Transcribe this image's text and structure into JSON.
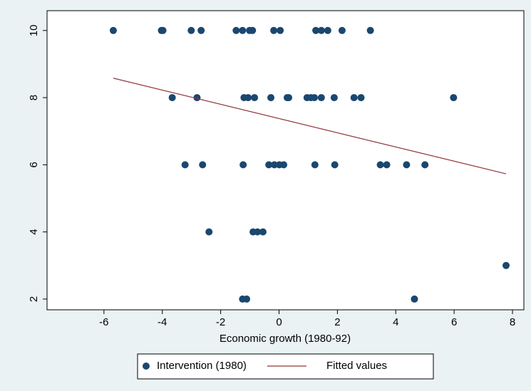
{
  "chart_data": {
    "type": "scatter",
    "xlabel": "Economic growth (1980-92)",
    "xlim": [
      -7.95,
      8.39
    ],
    "ylim": [
      1.68,
      10.59
    ],
    "xticks": [
      -6,
      -4,
      -2,
      0,
      2,
      4,
      6,
      8
    ],
    "yticks": [
      2,
      4,
      6,
      8,
      10
    ],
    "grid": false,
    "legend": "bottom",
    "series": [
      {
        "name": "Intervention (1980)",
        "type": "scatter",
        "color": "#1a476f",
        "x": [
          -5.68,
          -4.03,
          -3.98,
          -3.01,
          -2.67,
          -1.47,
          -1.25,
          -1.01,
          -0.91,
          -0.18,
          0.04,
          1.26,
          1.45,
          1.67,
          2.16,
          3.13,
          -3.66,
          -2.81,
          -1.2,
          -1.06,
          -0.84,
          -0.28,
          0.28,
          0.33,
          0.96,
          1.09,
          1.21,
          1.45,
          1.89,
          2.57,
          2.81,
          5.98,
          -3.22,
          -2.62,
          -1.23,
          -0.35,
          -0.16,
          0.01,
          0.16,
          1.23,
          1.91,
          3.47,
          3.69,
          4.37,
          5.0,
          -2.4,
          -0.89,
          -0.74,
          -0.55,
          7.78,
          -1.25,
          -1.11,
          4.64
        ],
        "values": [
          10,
          10,
          10,
          10,
          10,
          10,
          10,
          10,
          10,
          10,
          10,
          10,
          10,
          10,
          10,
          10,
          8,
          8,
          8,
          8,
          8,
          8,
          8,
          8,
          8,
          8,
          8,
          8,
          8,
          8,
          8,
          8,
          6,
          6,
          6,
          6,
          6,
          6,
          6,
          6,
          6,
          6,
          6,
          6,
          6,
          4,
          4,
          4,
          4,
          3,
          2,
          2,
          2
        ]
      },
      {
        "name": "Fitted values",
        "type": "line",
        "color": "#90353b",
        "x": [
          -5.68,
          7.78
        ],
        "values": [
          8.58,
          5.73
        ]
      }
    ]
  }
}
